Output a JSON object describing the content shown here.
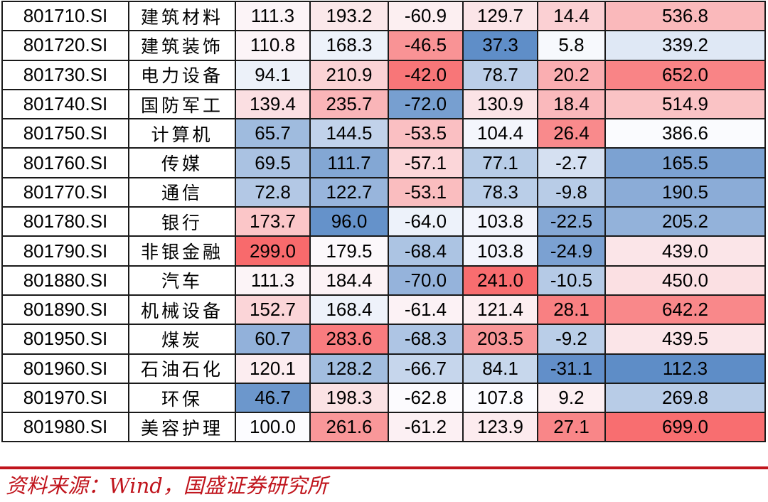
{
  "chart_data": {
    "type": "table",
    "rows": [
      {
        "code": "801710.SI",
        "name": "建筑材料",
        "values": [
          111.3,
          193.2,
          -60.9,
          129.7,
          14.4,
          536.8
        ]
      },
      {
        "code": "801720.SI",
        "name": "建筑装饰",
        "values": [
          110.8,
          168.3,
          -46.5,
          37.3,
          5.8,
          339.2
        ]
      },
      {
        "code": "801730.SI",
        "name": "电力设备",
        "values": [
          94.1,
          210.9,
          -42.0,
          78.7,
          20.2,
          652.0
        ]
      },
      {
        "code": "801740.SI",
        "name": "国防军工",
        "values": [
          139.4,
          235.7,
          -72.0,
          130.9,
          18.4,
          514.9
        ]
      },
      {
        "code": "801750.SI",
        "name": "计算机",
        "values": [
          65.7,
          144.5,
          -53.5,
          104.4,
          26.4,
          386.6
        ]
      },
      {
        "code": "801760.SI",
        "name": "传媒",
        "values": [
          69.5,
          111.7,
          -57.1,
          77.1,
          -2.7,
          165.5
        ]
      },
      {
        "code": "801770.SI",
        "name": "通信",
        "values": [
          72.8,
          122.7,
          -53.1,
          78.3,
          -9.8,
          190.5
        ]
      },
      {
        "code": "801780.SI",
        "name": "银行",
        "values": [
          173.7,
          96.0,
          -64.0,
          103.8,
          -22.5,
          205.2
        ]
      },
      {
        "code": "801790.SI",
        "name": "非银金融",
        "values": [
          299.0,
          179.5,
          -68.4,
          103.8,
          -24.9,
          439.0
        ]
      },
      {
        "code": "801880.SI",
        "name": "汽车",
        "values": [
          111.3,
          184.4,
          -70.0,
          241.0,
          -10.5,
          450.0
        ]
      },
      {
        "code": "801890.SI",
        "name": "机械设备",
        "values": [
          152.7,
          168.4,
          -61.4,
          121.4,
          28.1,
          642.2
        ]
      },
      {
        "code": "801950.SI",
        "name": "煤炭",
        "values": [
          60.7,
          283.6,
          -68.3,
          203.5,
          -9.2,
          439.5
        ]
      },
      {
        "code": "801960.SI",
        "name": "石油石化",
        "values": [
          120.1,
          128.2,
          -66.7,
          84.1,
          -31.1,
          112.3
        ]
      },
      {
        "code": "801970.SI",
        "name": "环保",
        "values": [
          46.7,
          198.3,
          -62.8,
          107.8,
          9.2,
          269.8
        ]
      },
      {
        "code": "801980.SI",
        "name": "美容护理",
        "values": [
          100.0,
          261.6,
          -61.2,
          123.9,
          27.1,
          699.0
        ]
      }
    ],
    "color_scale": {
      "low_color": "#5A8AC6",
      "mid_color": "#FCFCFF",
      "high_color": "#F8696B",
      "columns": [
        {
          "min": 40,
          "mid": 100,
          "max": 300
        },
        {
          "min": 90,
          "mid": 176,
          "max": 300
        },
        {
          "min": -74,
          "mid": -63,
          "max": -40
        },
        {
          "min": 35,
          "mid": 108,
          "max": 245
        },
        {
          "min": -33,
          "mid": 7,
          "max": 32
        },
        {
          "min": 105,
          "mid": 390,
          "max": 710
        }
      ]
    }
  },
  "footer": {
    "source": "资料来源：Wind，国盛证券研究所"
  }
}
